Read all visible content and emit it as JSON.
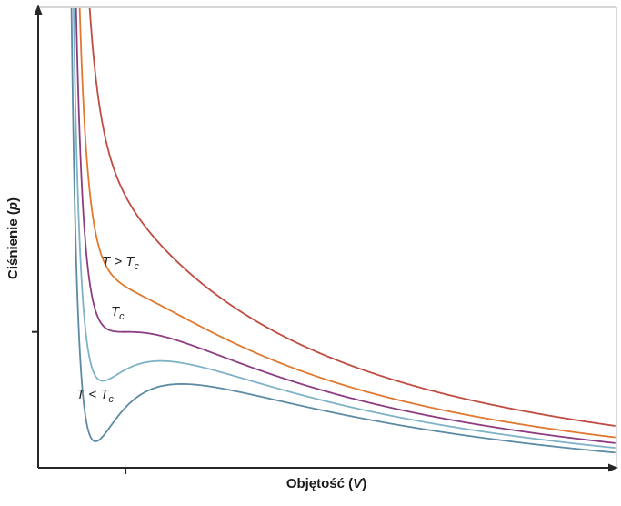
{
  "figure": {
    "background": "#ffffff",
    "frame_color": "#c8c8c8",
    "axis_color": "#262626",
    "text_color": "#1a1a1a"
  },
  "axes": {
    "y_label": {
      "pre": "Ciśnienie (",
      "var": "p",
      "post": ")"
    },
    "x_label": {
      "pre": "Objętość (",
      "var": "V",
      "post": ")"
    }
  },
  "labels": {
    "above_critical": {
      "pre": "T > T",
      "sub": "c"
    },
    "critical": {
      "pre": "T",
      "sub": "c"
    },
    "below_critical": {
      "pre": "T < T",
      "sub": "c"
    }
  },
  "chart_data": {
    "type": "line",
    "title": "",
    "xlabel": "Objętość (V)",
    "ylabel": "Ciśnienie (p)",
    "model": "van der Waals isotherms in reduced units: p = 8T/(3V - 1) - 3/V^2",
    "grid": false,
    "legend": "inline curve labels (T > Tc, Tc, T < Tc)",
    "x_range_reduced": [
      0.18,
      5.6
    ],
    "y_range_reduced": [
      0.28,
      2.72
    ],
    "critical_point_reduced": {
      "V": 1,
      "p": 1
    },
    "tick_marks": {
      "x_reduced": [
        1
      ],
      "y_reduced": [
        1
      ],
      "tick_labels": "none"
    },
    "series": [
      {
        "id": "far-above-critical",
        "name": "T > Tc (uppermost isotherm)",
        "T_reduced": 1.18,
        "color": "#bf4b41",
        "shape": "monotonic decreasing"
      },
      {
        "id": "above-critical",
        "name": "T > Tc (labelled isotherm)",
        "T_reduced": 1.06,
        "color": "#e1782f",
        "shape": "monotonic decreasing with shoulder near critical volume"
      },
      {
        "id": "critical",
        "name": "Tc (critical isotherm)",
        "T_reduced": 1.0,
        "color": "#8e3c80",
        "shape": "horizontal inflection at critical point",
        "inflection_reduced": {
          "V": 1,
          "p": 1
        }
      },
      {
        "id": "below-critical",
        "name": "T < Tc (upper subcritical isotherm)",
        "T_reduced": 0.95,
        "color": "#7fb2c6",
        "shape": "van der Waals loop",
        "local_min_reduced": {
          "V": 0.79,
          "p": 0.74
        },
        "local_max_reduced": {
          "V": 1.33,
          "p": 0.85
        }
      },
      {
        "id": "far-below-critical",
        "name": "T < Tc (labelled, lowest isotherm)",
        "T_reduced": 0.9,
        "color": "#5d8ba3",
        "shape": "deep van der Waals loop",
        "local_min_reduced": {
          "V": 0.72,
          "p": 0.42
        },
        "local_max_reduced": {
          "V": 1.52,
          "p": 0.72
        }
      }
    ]
  }
}
